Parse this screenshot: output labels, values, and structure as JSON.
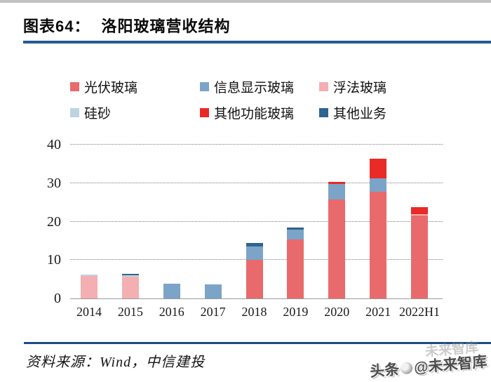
{
  "header": {
    "tag": "图表64：",
    "title": "洛阳玻璃营收结构"
  },
  "legend": {
    "items": [
      {
        "label": "光伏玻璃",
        "color": "#e96a6c"
      },
      {
        "label": "信息显示玻璃",
        "color": "#7ba4c8"
      },
      {
        "label": "浮法玻璃",
        "color": "#f3afb2"
      },
      {
        "label": "硅砂",
        "color": "#bed3e2"
      },
      {
        "label": "其他功能玻璃",
        "color": "#e92a26"
      },
      {
        "label": "其他业务",
        "color": "#2f648f"
      }
    ]
  },
  "chart_data": {
    "type": "bar",
    "subtype": "stacked-vertical",
    "title": "洛阳玻璃营收结构",
    "categories": [
      "2014",
      "2015",
      "2016",
      "2017",
      "2018",
      "2019",
      "2020",
      "2021",
      "2022H1"
    ],
    "series": [
      {
        "name": "光伏玻璃",
        "values": [
          0,
          0,
          0,
          0,
          10.1,
          15.4,
          25.7,
          27.7,
          21.5
        ]
      },
      {
        "name": "浮法玻璃",
        "values": [
          5.9,
          5.7,
          0,
          0,
          0,
          0,
          0,
          0,
          0.4
        ]
      },
      {
        "name": "硅砂",
        "values": [
          0.25,
          0.3,
          0,
          0,
          0,
          0,
          0,
          0,
          0
        ]
      },
      {
        "name": "信息显示玻璃",
        "values": [
          0,
          0,
          3.9,
          3.6,
          3.4,
          2.5,
          4.1,
          3.6,
          0
        ]
      },
      {
        "name": "其他功能玻璃",
        "values": [
          0,
          0,
          0,
          0,
          0,
          0,
          0.6,
          5.0,
          1.8
        ]
      },
      {
        "name": "其他业务",
        "values": [
          0,
          0.4,
          0,
          0,
          0.9,
          0.5,
          0,
          0,
          0
        ]
      }
    ],
    "series_colors": {
      "光伏玻璃": "#e96a6c",
      "信息显示玻璃": "#7ba4c8",
      "浮法玻璃": "#f3afb2",
      "硅砂": "#bed3e2",
      "其他功能玻璃": "#e92a26",
      "其他业务": "#2f648f"
    },
    "totals": [
      6.15,
      6.4,
      3.9,
      3.6,
      14.4,
      18.4,
      30.4,
      36.3,
      23.7
    ],
    "xlabel": "",
    "ylabel": "",
    "ylim": [
      0,
      40
    ],
    "yticks": [
      0,
      10,
      20,
      30,
      40
    ],
    "grid": "horizontal-dotted",
    "legend_position": "top"
  },
  "footer": {
    "source": "资料来源：Wind，中信建投"
  },
  "watermark": {
    "part1": "头条",
    "part2": "@未来智库",
    "ghost": "未来智库"
  },
  "colors": {
    "accent_rule": "#265f9c",
    "footer_rule": "#1c4c85"
  }
}
